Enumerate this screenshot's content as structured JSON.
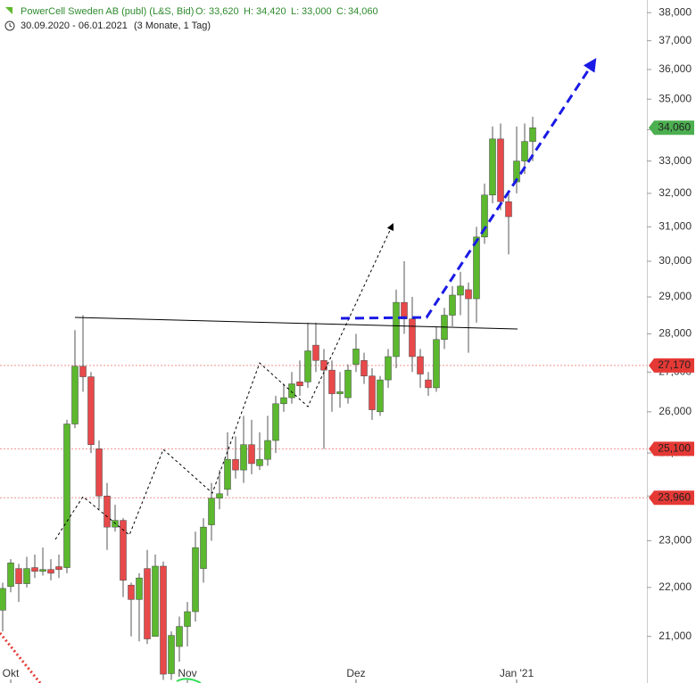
{
  "chart_data": {
    "type": "candlestick",
    "title": "PowerCell Sweden AB (publ) (L&S, Bid)",
    "ohlc_header": [
      {
        "label": "O:",
        "value": "33,620"
      },
      {
        "label": "H:",
        "value": "34,420"
      },
      {
        "label": "L:",
        "value": "33,000"
      },
      {
        "label": "C:",
        "value": "34,060"
      }
    ],
    "date_range": "30.09.2020 - 06.01.2021",
    "period": "(3 Monate, 1 Tag)",
    "log_scale": true,
    "up_color": "#5cb82e",
    "down_color": "#e8494a",
    "categories": [
      null,
      "Okt",
      null,
      null,
      null,
      null,
      null,
      null,
      null,
      null,
      null,
      null,
      null,
      null,
      null,
      null,
      null,
      null,
      null,
      null,
      null,
      null,
      null,
      "Nov",
      null,
      null,
      null,
      null,
      null,
      null,
      null,
      null,
      null,
      null,
      null,
      null,
      null,
      null,
      null,
      null,
      null,
      null,
      null,
      null,
      "Dez",
      null,
      null,
      null,
      null,
      null,
      null,
      null,
      null,
      null,
      null,
      null,
      null,
      null,
      null,
      null,
      null,
      null,
      null,
      null,
      "Jan '21",
      null,
      null
    ],
    "open": [
      21530,
      22020,
      22400,
      22080,
      22420,
      22340,
      22380,
      22440,
      22420,
      25700,
      27150,
      26880,
      25100,
      24000,
      23300,
      23450,
      22050,
      21750,
      22400,
      21000,
      22450,
      20270,
      20800,
      21200,
      21500,
      22400,
      23350,
      23950,
      24150,
      24850,
      24600,
      25200,
      24700,
      24850,
      25300,
      26200,
      26350,
      26750,
      26750,
      27700,
      27300,
      27050,
      26450,
      26350,
      27200,
      27300,
      26900,
      26000,
      26800,
      27400,
      28850,
      28400,
      27400,
      26800,
      26600,
      27850,
      28500,
      29050,
      29200,
      28950,
      30700,
      31950,
      33700,
      31750,
      32350,
      33000,
      33620
    ],
    "high": [
      22100,
      22600,
      22500,
      22650,
      22700,
      22850,
      22600,
      22700,
      25800,
      28100,
      28500,
      27000,
      25300,
      24300,
      23800,
      23500,
      22100,
      22300,
      22800,
      22700,
      22550,
      21100,
      21400,
      21700,
      23200,
      23500,
      24300,
      24600,
      25500,
      25400,
      25900,
      25800,
      25500,
      25900,
      26400,
      26700,
      27000,
      27300,
      28300,
      28300,
      27600,
      27300,
      27000,
      27200,
      28000,
      27500,
      27100,
      26900,
      27600,
      29200,
      30000,
      29000,
      27600,
      27000,
      28200,
      28700,
      29300,
      29700,
      29400,
      31000,
      32300,
      34100,
      34200,
      32000,
      34100,
      34200,
      34420
    ],
    "low": [
      21100,
      21900,
      21700,
      22000,
      22200,
      22250,
      22150,
      22200,
      22300,
      25600,
      26500,
      25000,
      23700,
      22800,
      23200,
      21800,
      21000,
      20900,
      20850,
      21000,
      20150,
      20150,
      20500,
      20800,
      21300,
      22100,
      23000,
      23700,
      24000,
      24400,
      24300,
      24500,
      24600,
      24700,
      25000,
      26000,
      26200,
      26400,
      26600,
      27000,
      25100,
      26000,
      26100,
      26200,
      27000,
      26700,
      25800,
      25900,
      26600,
      27100,
      28000,
      27000,
      26600,
      26400,
      26500,
      27600,
      28200,
      28500,
      27500,
      28300,
      30500,
      31700,
      31500,
      30200,
      32000,
      32600,
      33000
    ],
    "close": [
      21980,
      22520,
      22080,
      22400,
      22340,
      22380,
      22300,
      22380,
      25700,
      27150,
      26880,
      25200,
      24000,
      23300,
      23450,
      22150,
      21750,
      22200,
      20950,
      22450,
      20260,
      21020,
      21200,
      21500,
      22850,
      23300,
      23950,
      24050,
      24850,
      24600,
      25200,
      24750,
      24850,
      25300,
      26200,
      26350,
      26700,
      26650,
      27550,
      27300,
      27050,
      26450,
      26500,
      27050,
      27600,
      26900,
      26050,
      26800,
      27400,
      28850,
      28400,
      27400,
      26950,
      26600,
      27850,
      28500,
      29050,
      29300,
      28950,
      30700,
      31950,
      33700,
      31750,
      31300,
      33000,
      33620,
      34060
    ],
    "ylim": [
      20090,
      38460
    ],
    "yticks": [
      {
        "value": 21000,
        "label": "21,000"
      },
      {
        "value": 22000,
        "label": "22,000"
      },
      {
        "value": 23000,
        "label": "23,000"
      },
      {
        "value": 24000,
        "label": "24,000"
      },
      {
        "value": 25000,
        "label": "25,000"
      },
      {
        "value": 26000,
        "label": "26,000"
      },
      {
        "value": 27000,
        "label": "27,000"
      },
      {
        "value": 28000,
        "label": "28,000"
      },
      {
        "value": 29000,
        "label": "29,000"
      },
      {
        "value": 30000,
        "label": "30,000"
      },
      {
        "value": 31000,
        "label": "31,000"
      },
      {
        "value": 32000,
        "label": "32,000"
      },
      {
        "value": 33000,
        "label": "33,000"
      },
      {
        "value": 34000,
        "label": "34,000"
      },
      {
        "value": 35000,
        "label": "35,000"
      },
      {
        "value": 36000,
        "label": "36,000"
      },
      {
        "value": 37000,
        "label": "37,000"
      },
      {
        "value": 38000,
        "label": "38,000"
      }
    ],
    "price_markers": [
      {
        "value": 34060,
        "label": "34,060",
        "color": "#4caf50",
        "line": false
      },
      {
        "value": 27170,
        "label": "27,170",
        "color": "#e53935",
        "line": true
      },
      {
        "value": 25100,
        "label": "25,100",
        "color": "#e53935",
        "line": true
      },
      {
        "value": 23960,
        "label": "23,960",
        "color": "#e53935",
        "line": true
      }
    ]
  }
}
